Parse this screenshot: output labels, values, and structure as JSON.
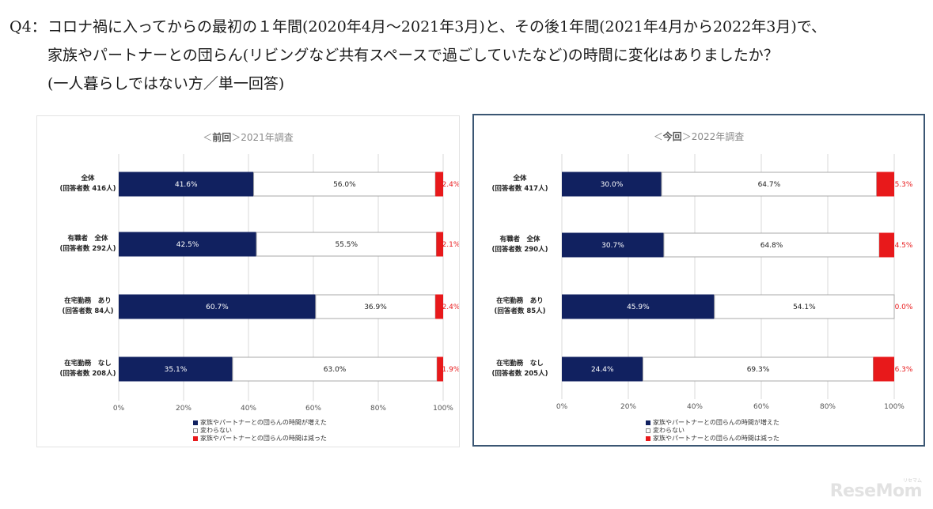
{
  "question": {
    "prefix": "Q4：",
    "line1": "コロナ禍に入ってからの最初の１年間(2020年4月～2021年3月)と、その後1年間(2021年4月から2022年3月)で、",
    "line2": "家族やパートナーとの団らん(リビングなど共有スペースで過ごしていたなど)の時間に変化はありましたか？",
    "line3": "(一人暮らしではない方／単一回答)"
  },
  "colors": {
    "increased": "#112160",
    "unchanged": "#ffffff",
    "decreased": "#e8191b",
    "border": "#a8a8a8"
  },
  "legend": [
    "家族やパートナーとの団らんの時間が増えた",
    "変わらない",
    "家族やパートナーとの団らんの時間は減った"
  ],
  "logo": {
    "text": "ReseMom",
    "small": "リセマム"
  },
  "chart_data": [
    {
      "type": "bar",
      "orientation": "horizontal-stacked",
      "title_prefix": "＜",
      "title_strong": "前回",
      "title_suffix": "＞2021年調査",
      "categories": [
        [
          "全体",
          "(回答者数 416人)"
        ],
        [
          "有職者　全体",
          "(回答者数 292人)"
        ],
        [
          "在宅勤務　あり",
          "(回答者数 84人)"
        ],
        [
          "在宅勤務　なし",
          "(回答者数 208人)"
        ]
      ],
      "series": [
        {
          "name": "家族やパートナーとの団らんの時間が増えた",
          "values": [
            41.6,
            42.5,
            60.7,
            35.1
          ]
        },
        {
          "name": "変わらない",
          "values": [
            56.0,
            55.5,
            36.9,
            63.0
          ]
        },
        {
          "name": "家族やパートナーとの団らんの時間は減った",
          "values": [
            2.4,
            2.1,
            2.4,
            1.9
          ]
        }
      ],
      "xlim": [
        0,
        100
      ],
      "xticks": [
        "0%",
        "20%",
        "40%",
        "60%",
        "80%",
        "100%"
      ]
    },
    {
      "type": "bar",
      "orientation": "horizontal-stacked",
      "title_prefix": "＜",
      "title_strong": "今回",
      "title_suffix": "＞2022年調査",
      "categories": [
        [
          "全体",
          "(回答者数 417人)"
        ],
        [
          "有職者　全体",
          "(回答者数 290人)"
        ],
        [
          "在宅勤務　あり",
          "(回答者数 85人)"
        ],
        [
          "在宅勤務　なし",
          "(回答者数 205人)"
        ]
      ],
      "series": [
        {
          "name": "家族やパートナーとの団らんの時間が増えた",
          "values": [
            30.0,
            30.7,
            45.9,
            24.4
          ]
        },
        {
          "name": "変わらない",
          "values": [
            64.7,
            64.8,
            54.1,
            69.3
          ]
        },
        {
          "name": "家族やパートナーとの団らんの時間は減った",
          "values": [
            5.3,
            4.5,
            0.0,
            6.3
          ]
        }
      ],
      "xlim": [
        0,
        100
      ],
      "xticks": [
        "0%",
        "20%",
        "40%",
        "60%",
        "80%",
        "100%"
      ]
    }
  ]
}
